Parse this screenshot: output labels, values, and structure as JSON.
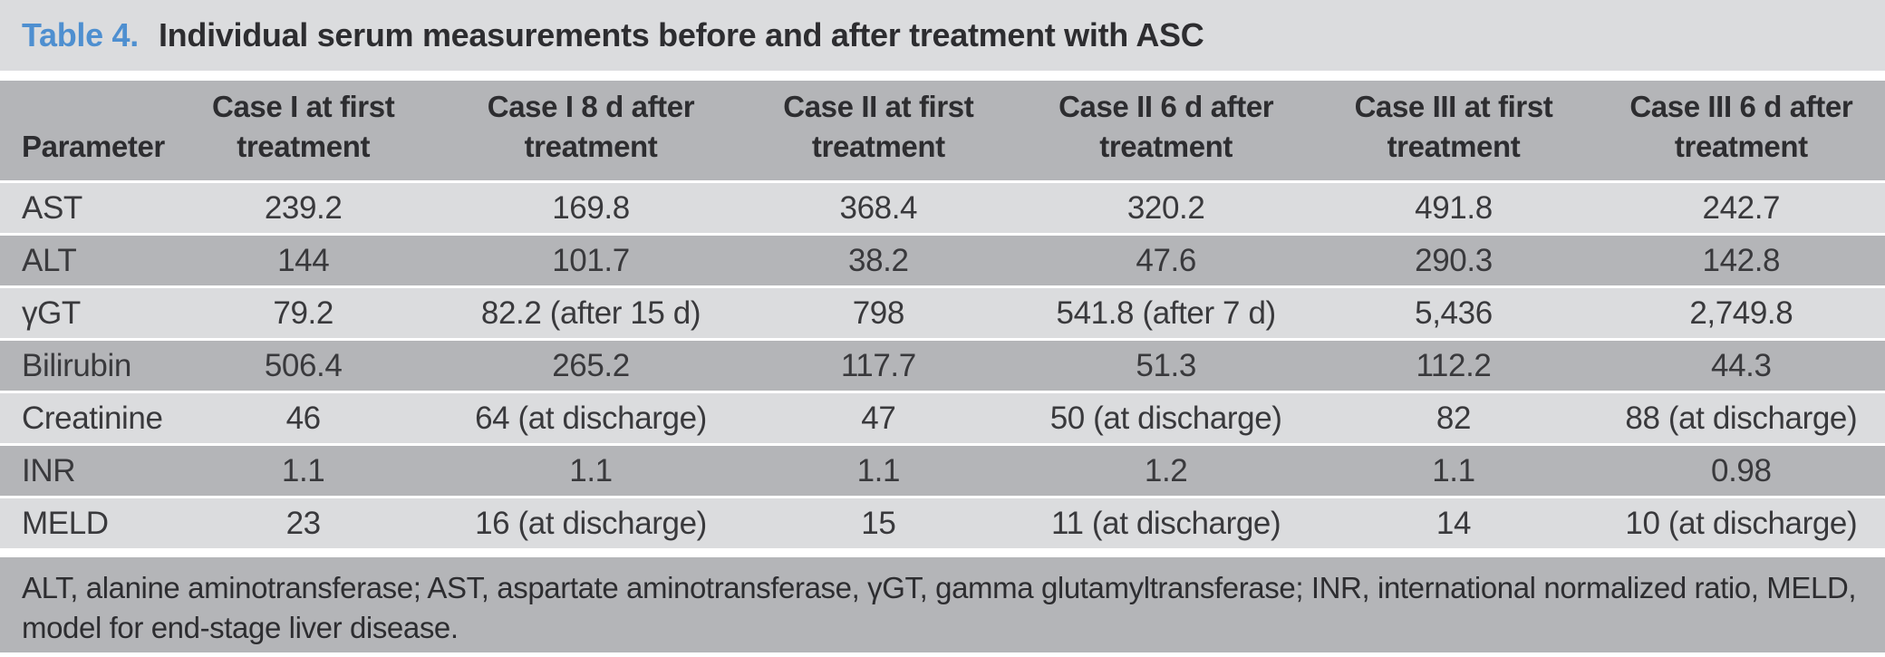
{
  "title": {
    "table_label": "Table 4.",
    "caption": "Individual serum measurements before and after treatment with ASC"
  },
  "colors": {
    "accent_blue": "#4e8fd0",
    "row_light": "#dbdcde",
    "row_medium": "#b4b5b8",
    "text_dark": "#2d2d30"
  },
  "table": {
    "header": [
      {
        "lines": [
          "Parameter"
        ]
      },
      {
        "lines": [
          "Case I at first",
          "treatment"
        ]
      },
      {
        "lines": [
          "Case I 8 d after",
          "treatment"
        ]
      },
      {
        "lines": [
          "Case II at first",
          "treatment"
        ]
      },
      {
        "lines": [
          "Case II 6 d after",
          "treatment"
        ]
      },
      {
        "lines": [
          "Case III at first",
          "treatment"
        ]
      },
      {
        "lines": [
          "Case III 6 d after",
          "treatment"
        ]
      }
    ],
    "rows": [
      {
        "parameter": "AST",
        "values": [
          "239.2",
          "169.8",
          "368.4",
          "320.2",
          "491.8",
          "242.7"
        ]
      },
      {
        "parameter": "ALT",
        "values": [
          "144",
          "101.7",
          "38.2",
          "47.6",
          "290.3",
          "142.8"
        ]
      },
      {
        "parameter": "γGT",
        "values": [
          "79.2",
          "82.2 (after 15 d)",
          "798",
          "541.8 (after 7 d)",
          "5,436",
          "2,749.8"
        ]
      },
      {
        "parameter": "Bilirubin",
        "values": [
          "506.4",
          "265.2",
          "117.7",
          "51.3",
          "112.2",
          "44.3"
        ]
      },
      {
        "parameter": "Creatinine",
        "values": [
          "46",
          "64 (at discharge)",
          "47",
          "50 (at discharge)",
          "82",
          "88 (at discharge)"
        ]
      },
      {
        "parameter": "INR",
        "values": [
          "1.1",
          "1.1",
          "1.1",
          "1.2",
          "1.1",
          "0.98"
        ]
      },
      {
        "parameter": "MELD",
        "values": [
          "23",
          "16 (at discharge)",
          "15",
          "11 (at discharge)",
          "14",
          "10 (at discharge)"
        ]
      }
    ]
  },
  "footnote": "ALT, alanine aminotransferase; AST, aspartate aminotransferase, γGT, gamma glutamyltransferase; INR, international normalized ratio, MELD, model for end-stage liver disease."
}
